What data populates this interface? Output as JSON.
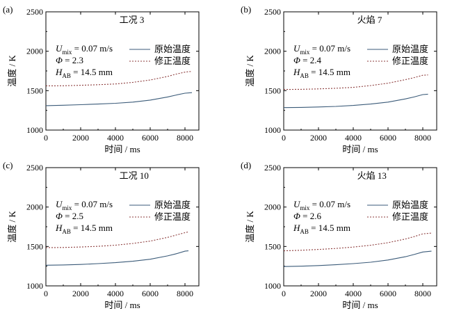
{
  "chart_data": [
    {
      "type": "line",
      "panel": "(a)",
      "title": "工况 3",
      "xlabel": "时间 / ms",
      "ylabel": "温度 / K",
      "xlim": [
        0,
        8800
      ],
      "ylim": [
        1000,
        2500
      ],
      "xticks": [
        0,
        2000,
        4000,
        6000,
        8000
      ],
      "yticks": [
        1000,
        1500,
        2000,
        2500
      ],
      "annotations": [
        {
          "symbol": "U",
          "sub": "mix",
          "text": " = 0.07 m/s"
        },
        {
          "symbol": "Φ",
          "sub": "",
          "text": " = 2.3"
        },
        {
          "symbol": "H",
          "sub": "AB",
          "text": " = 14.5 mm"
        }
      ],
      "legend_position": "right",
      "series": [
        {
          "name": "原始温度",
          "style": "solid",
          "color": "#3a5a78",
          "x": [
            0,
            1000,
            2000,
            3000,
            4000,
            5000,
            6000,
            7000,
            7500,
            8000,
            8400
          ],
          "y": [
            1310,
            1315,
            1322,
            1330,
            1340,
            1355,
            1380,
            1420,
            1445,
            1468,
            1475
          ]
        },
        {
          "name": "修正温度",
          "style": "dashed",
          "color": "#8b3a3a",
          "x": [
            0,
            1000,
            2000,
            3000,
            4000,
            5000,
            6000,
            7000,
            7500,
            8000,
            8400
          ],
          "y": [
            1560,
            1562,
            1568,
            1575,
            1585,
            1605,
            1635,
            1680,
            1710,
            1735,
            1745
          ]
        }
      ]
    },
    {
      "type": "line",
      "panel": "(b)",
      "title": "火焰 7",
      "xlabel": "时间 / ms",
      "ylabel": "温度 / K",
      "xlim": [
        0,
        8800
      ],
      "ylim": [
        1000,
        2500
      ],
      "xticks": [
        0,
        2000,
        4000,
        6000,
        8000
      ],
      "yticks": [
        1000,
        1500,
        2000,
        2500
      ],
      "annotations": [
        {
          "symbol": "U",
          "sub": "mix",
          "text": " = 0.07 m/s"
        },
        {
          "symbol": "Φ",
          "sub": "",
          "text": " = 2.4"
        },
        {
          "symbol": "H",
          "sub": "AB",
          "text": " = 14.5 mm"
        }
      ],
      "legend_position": "right",
      "series": [
        {
          "name": "原始温度",
          "style": "solid",
          "color": "#3a5a78",
          "x": [
            0,
            1000,
            2000,
            3000,
            4000,
            5000,
            6000,
            7000,
            7500,
            8000,
            8300
          ],
          "y": [
            1285,
            1288,
            1293,
            1300,
            1312,
            1330,
            1355,
            1395,
            1420,
            1450,
            1455
          ]
        },
        {
          "name": "修正温度",
          "style": "dashed",
          "color": "#8b3a3a",
          "x": [
            0,
            1000,
            2000,
            3000,
            4000,
            5000,
            6000,
            7000,
            7500,
            8000,
            8300
          ],
          "y": [
            1515,
            1517,
            1522,
            1530,
            1542,
            1565,
            1595,
            1640,
            1665,
            1695,
            1700
          ]
        }
      ]
    },
    {
      "type": "line",
      "panel": "(c)",
      "title": "工况 10",
      "xlabel": "时间 / ms",
      "ylabel": "温度 / K",
      "xlim": [
        0,
        8800
      ],
      "ylim": [
        1000,
        2500
      ],
      "xticks": [
        0,
        2000,
        4000,
        6000,
        8000
      ],
      "yticks": [
        1000,
        1500,
        2000,
        2500
      ],
      "annotations": [
        {
          "symbol": "U",
          "sub": "mix",
          "text": " = 0.07 m/s"
        },
        {
          "symbol": "Φ",
          "sub": "",
          "text": " = 2.5"
        },
        {
          "symbol": "H",
          "sub": "AB",
          "text": " = 14.5 mm"
        }
      ],
      "legend_position": "right",
      "series": [
        {
          "name": "原始温度",
          "style": "solid",
          "color": "#3a5a78",
          "x": [
            0,
            1000,
            2000,
            3000,
            4000,
            5000,
            6000,
            7000,
            7500,
            8000,
            8200
          ],
          "y": [
            1262,
            1266,
            1272,
            1282,
            1295,
            1312,
            1338,
            1380,
            1408,
            1440,
            1445
          ]
        },
        {
          "name": "修正温度",
          "style": "dashed",
          "color": "#8b3a3a",
          "x": [
            0,
            1000,
            2000,
            3000,
            4000,
            5000,
            6000,
            7000,
            7500,
            8000,
            8200
          ],
          "y": [
            1485,
            1487,
            1493,
            1502,
            1516,
            1538,
            1568,
            1615,
            1645,
            1675,
            1685
          ]
        }
      ]
    },
    {
      "type": "line",
      "panel": "(d)",
      "title": "火焰 13",
      "xlabel": "时间 / ms",
      "ylabel": "温度 / K",
      "xlim": [
        0,
        8800
      ],
      "ylim": [
        1000,
        2500
      ],
      "xticks": [
        0,
        2000,
        4000,
        6000,
        8000
      ],
      "yticks": [
        1000,
        1500,
        2000,
        2500
      ],
      "annotations": [
        {
          "symbol": "U",
          "sub": "mix",
          "text": " = 0.07 m/s"
        },
        {
          "symbol": "Φ",
          "sub": "",
          "text": " = 2.6"
        },
        {
          "symbol": "H",
          "sub": "AB",
          "text": " = 14.5 mm"
        }
      ],
      "legend_position": "right",
      "series": [
        {
          "name": "原始温度",
          "style": "solid",
          "color": "#3a5a78",
          "x": [
            0,
            1000,
            2000,
            3000,
            4000,
            5000,
            6000,
            7000,
            7500,
            8000,
            8500
          ],
          "y": [
            1245,
            1250,
            1258,
            1268,
            1282,
            1300,
            1328,
            1370,
            1398,
            1430,
            1440
          ]
        },
        {
          "name": "修正温度",
          "style": "dashed",
          "color": "#8b3a3a",
          "x": [
            0,
            1000,
            2000,
            3000,
            4000,
            5000,
            6000,
            7000,
            7500,
            8000,
            8500
          ],
          "y": [
            1445,
            1452,
            1462,
            1475,
            1492,
            1515,
            1548,
            1595,
            1625,
            1660,
            1670
          ]
        }
      ]
    }
  ]
}
